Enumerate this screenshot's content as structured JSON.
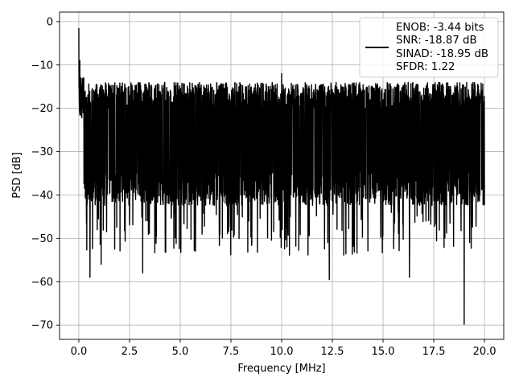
{
  "chart_data": {
    "type": "line",
    "xlabel": "Frequency [MHz]",
    "ylabel": "PSD [dB]",
    "xlim": [
      -0.95,
      20.95
    ],
    "ylim": [
      -73.3,
      2.2
    ],
    "xticks": [
      0.0,
      2.5,
      5.0,
      7.5,
      10.0,
      12.5,
      15.0,
      17.5,
      20.0
    ],
    "xtick_labels": [
      "0.0",
      "2.5",
      "5.0",
      "7.5",
      "10.0",
      "12.5",
      "15.0",
      "17.5",
      "20.0"
    ],
    "yticks": [
      0,
      -10,
      -20,
      -30,
      -40,
      -50,
      -60,
      -70
    ],
    "ytick_labels": [
      "0",
      "−10",
      "−20",
      "−30",
      "−40",
      "−50",
      "−60",
      "−70"
    ],
    "grid": true,
    "legend_position": "upper-right",
    "legend_lines": [
      "ENOB: -3.44 bits",
      "SNR: -18.87 dB",
      "SINAD: -18.95 dB",
      "SFDR: 1.22"
    ],
    "series": [
      {
        "color": "#000000",
        "x_range": [
          0.0,
          20.0
        ],
        "peak_dB": 0.0,
        "noise_floor_mean_dB": -27,
        "noise_upper_envelope_dB": -17,
        "noise_lower_envelope_dB": -40,
        "spikes": [
          {
            "x": 0.0,
            "y": -1.5
          },
          {
            "x": 0.05,
            "y": -9.0
          },
          {
            "x": 0.1,
            "y": -13.0
          },
          {
            "x": 10.0,
            "y": -12.0
          },
          {
            "x": 0.55,
            "y": -59.0
          },
          {
            "x": 1.1,
            "y": -56.0
          },
          {
            "x": 3.15,
            "y": -58.0
          },
          {
            "x": 12.35,
            "y": -59.5
          },
          {
            "x": 16.3,
            "y": -59.0
          },
          {
            "x": 19.0,
            "y": -69.8
          }
        ]
      }
    ]
  }
}
